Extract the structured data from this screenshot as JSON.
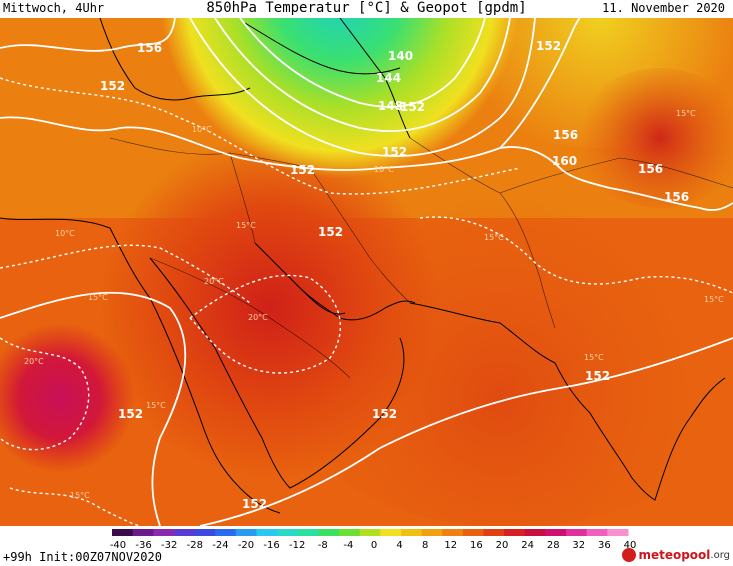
{
  "header": {
    "valid_day": "Mittwoch, 4Uhr",
    "title": "850hPa Temperatur [°C] & Geopot [gpdm]",
    "valid_date": "11. November 2020"
  },
  "footer": {
    "run_info": "+99h Init:00Z07NOV2020",
    "brand_name": "meteopool",
    "brand_suffix": ".org"
  },
  "colorbar": {
    "ticks": [
      "-40",
      "-36",
      "-32",
      "-28",
      "-24",
      "-20",
      "-16",
      "-12",
      "-8",
      "-4",
      "0",
      "4",
      "8",
      "12",
      "16",
      "20",
      "24",
      "28",
      "32",
      "36",
      "40"
    ],
    "colors": [
      "#3a0a4a",
      "#6a1a8a",
      "#8a2ab0",
      "#5a3ad0",
      "#3a4ae0",
      "#2a6af0",
      "#2a9af0",
      "#2ac8f0",
      "#2ad8c8",
      "#2ae0a0",
      "#3ae060",
      "#6ae030",
      "#b0e020",
      "#f0e020",
      "#f0c010",
      "#f0a010",
      "#f08010",
      "#e86010",
      "#e04010",
      "#d82020",
      "#c81040",
      "#d01070",
      "#e030a0",
      "#f060c0",
      "#f890d0"
    ]
  },
  "map": {
    "contours": [
      "156",
      "152",
      "140",
      "144",
      "148",
      "152",
      "152",
      "152",
      "152",
      "156",
      "160",
      "156",
      "156",
      "152",
      "152",
      "152",
      "152",
      "152"
    ],
    "temps": [
      "10°C",
      "10°C",
      "15°C",
      "15°C",
      "20°C",
      "20°C",
      "15°C",
      "20°C",
      "15°C",
      "15°C",
      "15°C",
      "15°C",
      "10°C",
      "15°C"
    ]
  }
}
